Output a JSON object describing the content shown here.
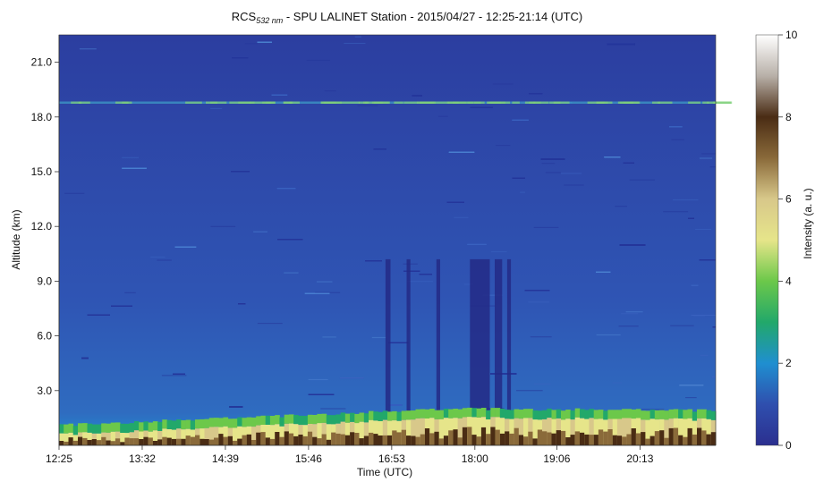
{
  "chart_data": {
    "type": "heatmap",
    "title_main": "RCS",
    "title_sub": "532 nm",
    "title_rest": " - SPU LALINET Station - 2015/04/27 - 12:25-21:14 (UTC)",
    "xlabel": "Time (UTC)",
    "ylabel": "Altitude (km)",
    "colorbar_label": "Intensity (a. u.)",
    "x_ticks": [
      "12:25",
      "13:32",
      "14:39",
      "15:46",
      "16:53",
      "18:00",
      "19:06",
      "20:13"
    ],
    "x_tick_minutes": [
      745,
      812,
      879,
      946,
      1013,
      1080,
      1146,
      1213
    ],
    "xlim_minutes": [
      745,
      1274
    ],
    "y_ticks": [
      "3.0",
      "6.0",
      "9.0",
      "12.0",
      "15.0",
      "18.0",
      "21.0"
    ],
    "y_tick_values": [
      3.0,
      6.0,
      9.0,
      12.0,
      15.0,
      18.0,
      21.0
    ],
    "ylim": [
      0.0,
      22.5
    ],
    "colorbar_ticks": [
      "0",
      "2",
      "4",
      "6",
      "8",
      "10"
    ],
    "colorbar_values": [
      0,
      2,
      4,
      6,
      8,
      10
    ],
    "colorscale": [
      {
        "value": 0,
        "color": "#2b2f8f"
      },
      {
        "value": 1,
        "color": "#2f4fae"
      },
      {
        "value": 2,
        "color": "#1f8fd0"
      },
      {
        "value": 3,
        "color": "#22a86a"
      },
      {
        "value": 4,
        "color": "#6cc84a"
      },
      {
        "value": 5,
        "color": "#e6e58a"
      },
      {
        "value": 6,
        "color": "#d8c88a"
      },
      {
        "value": 7,
        "color": "#8a6a3a"
      },
      {
        "value": 8,
        "color": "#4a2c14"
      },
      {
        "value": 9,
        "color": "#b8b0a8"
      },
      {
        "value": 10,
        "color": "#ffffff"
      }
    ],
    "cloud_layer_km": 18.8,
    "boundary_layer_top_km": [
      0.6,
      1.5,
      1.4
    ],
    "grid": false
  }
}
